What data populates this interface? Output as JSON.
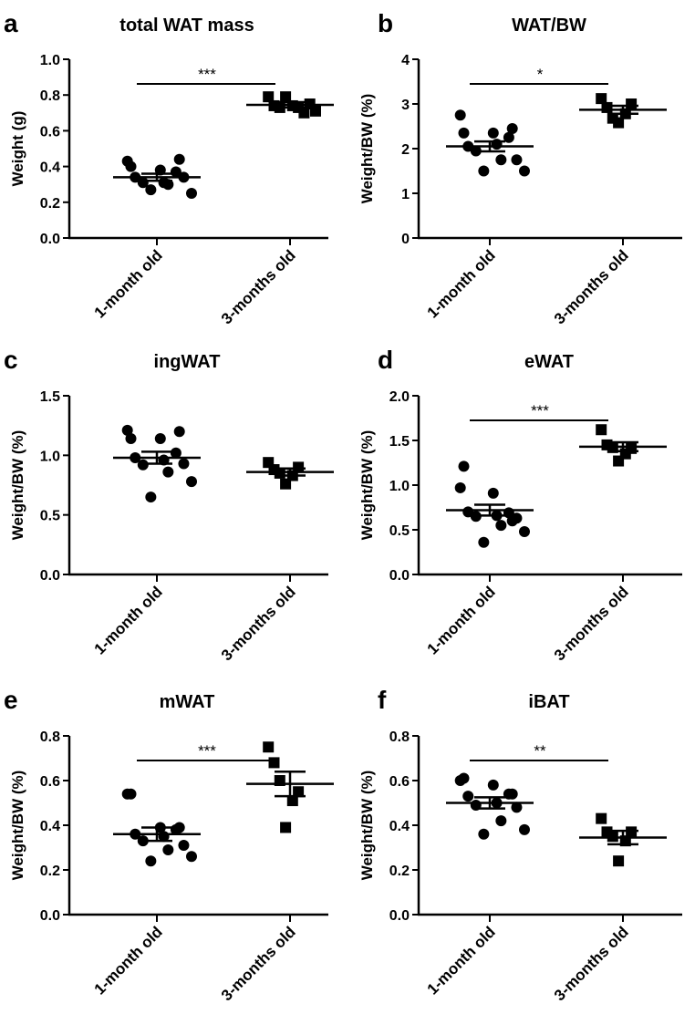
{
  "chart_data": [
    {
      "type": "scatter",
      "panel_letter": "a",
      "title": "total WAT mass",
      "ylabel": "Weight (g)",
      "ylim": [
        0,
        1.0
      ],
      "yticks": [
        "0.0",
        "0.2",
        "0.4",
        "0.6",
        "0.8",
        "1.0"
      ],
      "categories": [
        "1-month old",
        "3-months old"
      ],
      "series": [
        {
          "marker": "circle",
          "mean": 0.34,
          "sem": 0.02,
          "values": [
            0.43,
            0.34,
            0.31,
            0.27,
            0.38,
            0.3,
            0.37,
            0.34,
            0.25,
            0.4,
            0.31,
            0.44
          ]
        },
        {
          "marker": "square",
          "mean": 0.745,
          "sem": 0.015,
          "values": [
            0.79,
            0.74,
            0.73,
            0.79,
            0.74,
            0.73,
            0.7,
            0.75,
            0.71
          ]
        }
      ],
      "significance": "***"
    },
    {
      "type": "scatter",
      "panel_letter": "b",
      "title": "WAT/BW",
      "ylabel": "Weight/BW (%)",
      "ylim": [
        0,
        4
      ],
      "yticks": [
        "0",
        "1",
        "2",
        "3",
        "4"
      ],
      "categories": [
        "1-month old",
        "3-months old"
      ],
      "series": [
        {
          "marker": "circle",
          "mean": 2.05,
          "sem": 0.11,
          "values": [
            2.75,
            2.05,
            1.95,
            1.5,
            2.35,
            1.75,
            2.25,
            1.75,
            1.5,
            2.35,
            2.1,
            2.45
          ]
        },
        {
          "marker": "square",
          "mean": 2.87,
          "sem": 0.09,
          "values": [
            3.12,
            2.92,
            2.68,
            2.58,
            2.78,
            3.0
          ]
        }
      ],
      "significance": "*"
    },
    {
      "type": "scatter",
      "panel_letter": "c",
      "title": "ingWAT",
      "ylabel": "Weight/BW (%)",
      "ylim": [
        0,
        1.5
      ],
      "yticks": [
        "0.0",
        "0.5",
        "1.0",
        "1.5"
      ],
      "categories": [
        "1-month old",
        "3-months old"
      ],
      "series": [
        {
          "marker": "circle",
          "mean": 0.98,
          "sem": 0.05,
          "values": [
            1.21,
            0.98,
            0.92,
            0.65,
            1.14,
            0.86,
            1.02,
            0.93,
            0.78,
            1.14,
            0.96,
            1.2
          ]
        },
        {
          "marker": "square",
          "mean": 0.86,
          "sem": 0.03,
          "values": [
            0.94,
            0.88,
            0.85,
            0.76,
            0.83,
            0.9
          ]
        }
      ],
      "significance": ""
    },
    {
      "type": "scatter",
      "panel_letter": "d",
      "title": "eWAT",
      "ylabel": "Weight/BW (%)",
      "ylim": [
        0,
        2.0
      ],
      "yticks": [
        "0.0",
        "0.5",
        "1.0",
        "1.5",
        "2.0"
      ],
      "categories": [
        "1-month old",
        "3-months old"
      ],
      "series": [
        {
          "marker": "circle",
          "mean": 0.72,
          "sem": 0.06,
          "values": [
            0.97,
            0.7,
            0.65,
            0.36,
            0.91,
            0.55,
            0.69,
            0.63,
            0.48,
            1.21,
            0.66,
            0.6
          ]
        },
        {
          "marker": "square",
          "mean": 1.43,
          "sem": 0.05,
          "values": [
            1.62,
            1.45,
            1.42,
            1.27,
            1.35,
            1.41
          ]
        }
      ],
      "significance": "***"
    },
    {
      "type": "scatter",
      "panel_letter": "e",
      "title": "mWAT",
      "ylabel": "Weight/BW (%)",
      "ylim": [
        0,
        0.8
      ],
      "yticks": [
        "0.0",
        "0.2",
        "0.4",
        "0.6",
        "0.8"
      ],
      "categories": [
        "1-month old",
        "3-months old"
      ],
      "series": [
        {
          "marker": "circle",
          "mean": 0.36,
          "sem": 0.03,
          "values": [
            0.54,
            0.36,
            0.33,
            0.24,
            0.39,
            0.29,
            0.38,
            0.31,
            0.26,
            0.54,
            0.35,
            0.39
          ]
        },
        {
          "marker": "square",
          "mean": 0.585,
          "sem": 0.055,
          "values": [
            0.75,
            0.68,
            0.6,
            0.39,
            0.51,
            0.55
          ]
        }
      ],
      "significance": "***"
    },
    {
      "type": "scatter",
      "panel_letter": "f",
      "title": "iBAT",
      "ylabel": "Weight/BW (%)",
      "ylim": [
        0,
        0.8
      ],
      "yticks": [
        "0.0",
        "0.2",
        "0.4",
        "0.6",
        "0.8"
      ],
      "categories": [
        "1-month old",
        "3-months old"
      ],
      "series": [
        {
          "marker": "circle",
          "mean": 0.5,
          "sem": 0.025,
          "values": [
            0.6,
            0.53,
            0.49,
            0.36,
            0.58,
            0.42,
            0.54,
            0.48,
            0.38,
            0.61,
            0.5,
            0.54
          ]
        },
        {
          "marker": "square",
          "mean": 0.345,
          "sem": 0.03,
          "values": [
            0.43,
            0.37,
            0.35,
            0.24,
            0.33,
            0.37
          ]
        }
      ],
      "significance": "**"
    }
  ]
}
